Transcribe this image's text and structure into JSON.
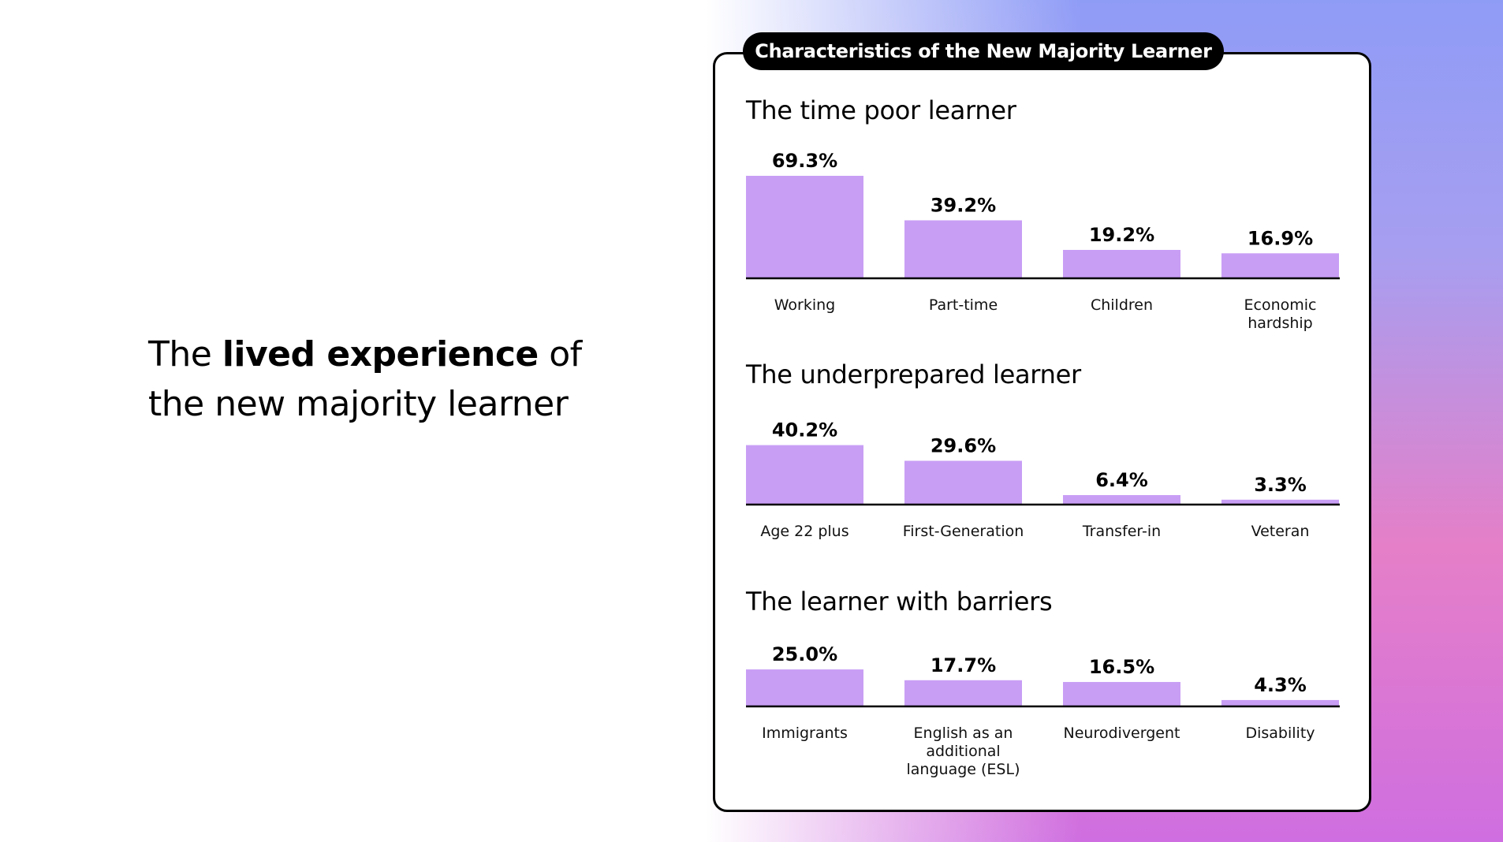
{
  "headline": {
    "part1": "The ",
    "bold": "lived experience",
    "part2": " of",
    "line2": "the new majority learner"
  },
  "card": {
    "title": "Characteristics of the New Majority Learner"
  },
  "colors": {
    "bar": "#c89ef5",
    "axis": "#000000"
  },
  "chart_data": [
    {
      "type": "bar",
      "title": "The time poor learner",
      "categories": [
        "Working",
        "Part-time",
        "Children",
        "Economic hardship"
      ],
      "values": [
        69.3,
        39.2,
        19.2,
        16.9
      ],
      "value_labels": [
        "69.3%",
        "39.2%",
        "19.2%",
        "16.9%"
      ],
      "category_label_lines": [
        [
          "Working"
        ],
        [
          "Part-time"
        ],
        [
          "Children"
        ],
        [
          "Economic",
          "hardship"
        ]
      ],
      "ylim": [
        0,
        69.3
      ],
      "grid": false
    },
    {
      "type": "bar",
      "title": "The underprepared learner",
      "categories": [
        "Age 22 plus",
        "First-Generation",
        "Transfer-in",
        "Veteran"
      ],
      "values": [
        40.2,
        29.6,
        6.4,
        3.3
      ],
      "value_labels": [
        "40.2%",
        "29.6%",
        "6.4%",
        "3.3%"
      ],
      "category_label_lines": [
        [
          "Age 22 plus"
        ],
        [
          "First-Generation"
        ],
        [
          "Transfer-in"
        ],
        [
          "Veteran"
        ]
      ],
      "ylim": [
        0,
        69.3
      ],
      "grid": false
    },
    {
      "type": "bar",
      "title": "The learner with barriers",
      "categories": [
        "Immigrants",
        "English as an additional language (ESL)",
        "Neurodivergent",
        "Disability"
      ],
      "values": [
        25.0,
        17.7,
        16.5,
        4.3
      ],
      "value_labels": [
        "25.0%",
        "17.7%",
        "16.5%",
        "4.3%"
      ],
      "category_label_lines": [
        [
          "Immigrants"
        ],
        [
          "English as an",
          "additional",
          "language (ESL)"
        ],
        [
          "Neurodivergent"
        ],
        [
          "Disability"
        ]
      ],
      "ylim": [
        0,
        69.3
      ],
      "grid": false
    }
  ]
}
